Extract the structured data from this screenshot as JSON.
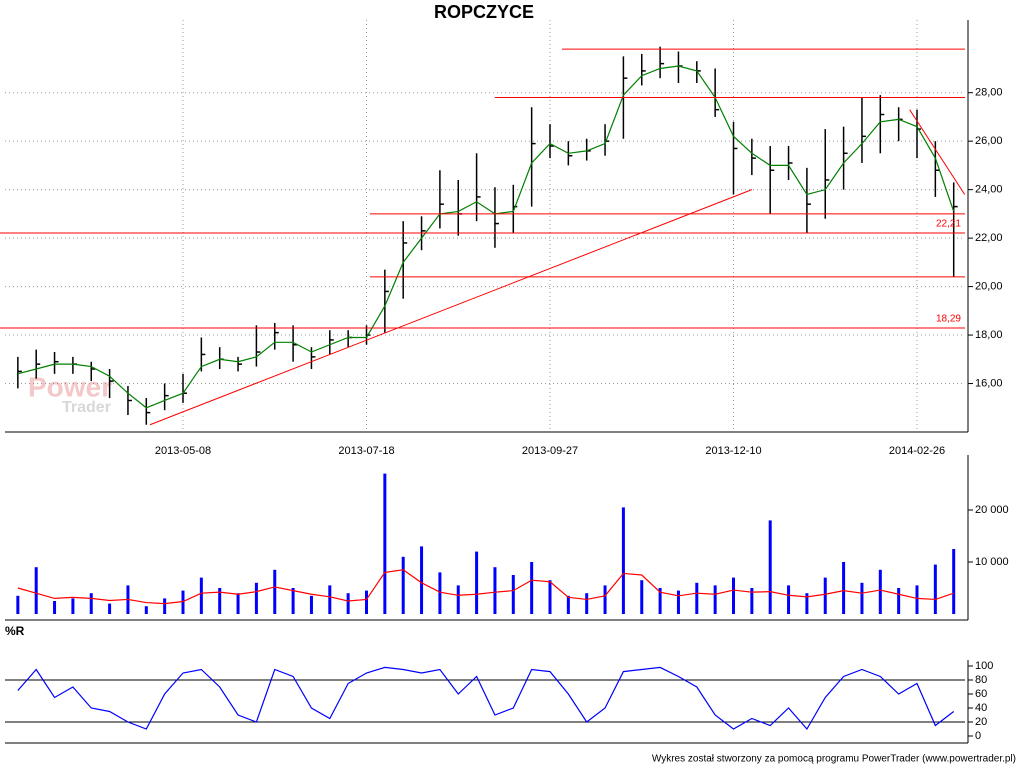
{
  "title": "ROPCZYCE",
  "footer": "Wykres został stworzony za pomocą programu PowerTrader (www.powertrader.pl)",
  "watermark": [
    "Power",
    "Trader"
  ],
  "chart_data": [
    {
      "type": "ohlc",
      "color": "#000000",
      "grid": true,
      "categories": [
        null,
        null,
        null,
        null,
        null,
        null,
        null,
        null,
        null,
        "2013-05-08",
        null,
        null,
        null,
        null,
        null,
        null,
        null,
        null,
        null,
        "2013-07-18",
        null,
        null,
        null,
        null,
        null,
        null,
        null,
        null,
        null,
        "2013-09-27",
        null,
        null,
        null,
        null,
        null,
        null,
        null,
        null,
        null,
        "2013-12-10",
        null,
        null,
        null,
        null,
        null,
        null,
        null,
        null,
        null,
        "2014-02-26",
        null,
        null
      ],
      "high": [
        17.1,
        17.4,
        17.3,
        17.1,
        16.9,
        16.6,
        15.9,
        15.4,
        16.0,
        16.4,
        17.9,
        17.5,
        17.1,
        18.4,
        18.5,
        18.4,
        17.5,
        18.2,
        18.2,
        18.4,
        20.7,
        22.7,
        22.9,
        24.8,
        24.4,
        25.5,
        24.1,
        24.2,
        27.4,
        26.7,
        26.0,
        26.1,
        26.7,
        29.5,
        29.6,
        29.9,
        29.7,
        29.3,
        29.0,
        26.8,
        26.1,
        25.8,
        25.8,
        24.9,
        26.5,
        26.6,
        27.8,
        27.9,
        27.4,
        27.3,
        26.0,
        24.3
      ],
      "low": [
        15.8,
        16.2,
        16.4,
        16.4,
        16.1,
        15.4,
        14.7,
        14.3,
        14.9,
        15.2,
        16.5,
        16.6,
        16.5,
        16.7,
        17.4,
        16.9,
        16.6,
        17.2,
        17.5,
        17.6,
        18.1,
        19.5,
        21.5,
        22.4,
        22.1,
        22.7,
        21.6,
        22.2,
        23.3,
        25.3,
        25.0,
        25.2,
        25.4,
        26.1,
        28.3,
        28.6,
        28.4,
        28.4,
        27.0,
        23.8,
        24.6,
        23.0,
        24.4,
        22.2,
        22.8,
        24.0,
        25.1,
        25.5,
        26.0,
        25.3,
        23.7,
        20.4
      ],
      "close": [
        16.5,
        16.8,
        16.9,
        16.8,
        16.6,
        16.1,
        15.3,
        14.8,
        15.5,
        15.6,
        17.2,
        17.0,
        16.8,
        17.3,
        18.1,
        17.6,
        17.1,
        17.8,
        17.9,
        18.0,
        19.8,
        21.8,
        22.3,
        23.4,
        23.0,
        23.7,
        22.6,
        23.3,
        25.9,
        25.8,
        25.4,
        25.6,
        26.0,
        28.6,
        28.9,
        29.2,
        29.1,
        28.9,
        27.3,
        25.7,
        25.3,
        24.8,
        25.1,
        23.4,
        24.4,
        25.5,
        26.2,
        27.1,
        26.9,
        26.5,
        24.8,
        23.3
      ],
      "ma": {
        "color": "#008000",
        "values": [
          16.4,
          16.6,
          16.8,
          16.8,
          16.7,
          16.3,
          15.6,
          15.0,
          15.3,
          15.6,
          16.7,
          17.0,
          16.9,
          17.1,
          17.7,
          17.7,
          17.3,
          17.6,
          17.9,
          17.9,
          19.2,
          21.0,
          22.0,
          23.0,
          23.1,
          23.5,
          23.0,
          23.1,
          25.1,
          25.9,
          25.5,
          25.6,
          25.9,
          27.9,
          28.7,
          29.0,
          29.1,
          28.9,
          27.8,
          26.2,
          25.5,
          25.0,
          25.0,
          23.8,
          24.0,
          25.1,
          25.9,
          26.8,
          26.9,
          26.6,
          25.3,
          23.1
        ]
      },
      "levels_color": "#ff0000",
      "levels": [
        {
          "value": 29.8,
          "x1": 29.65
        },
        {
          "value": 27.8,
          "x1": 25.99
        },
        {
          "value": 23.0,
          "x1": 19.19
        },
        {
          "value": 22.21,
          "label": "22,21",
          "x1": -1
        },
        {
          "value": 20.4,
          "x1": 19.19
        },
        {
          "value": 18.29,
          "label": "18,29",
          "x1": -1
        }
      ],
      "trendlines": [
        {
          "x": [
            7.2,
            40.0
          ],
          "y": [
            14.3,
            24.0
          ]
        },
        {
          "x": [
            48.6,
            51.6
          ],
          "y": [
            27.3,
            23.8
          ]
        }
      ],
      "ylim": [
        14,
        31
      ],
      "yticks": [
        {
          "value": 16,
          "label": "16,00"
        },
        {
          "value": 18,
          "label": "18,00"
        },
        {
          "value": 20,
          "label": "20,00"
        },
        {
          "value": 22,
          "label": "22,00"
        },
        {
          "value": 24,
          "label": "24,00"
        },
        {
          "value": 26,
          "label": "26,00"
        },
        {
          "value": 28,
          "label": "28,00"
        }
      ]
    },
    {
      "type": "bar",
      "color": "#0000ff",
      "values": [
        3500,
        9000,
        2500,
        3000,
        4000,
        2000,
        5500,
        1500,
        3000,
        4500,
        7000,
        5000,
        4000,
        6000,
        8500,
        5000,
        3500,
        5500,
        4000,
        4500,
        27000,
        11000,
        13000,
        8000,
        5500,
        12000,
        9000,
        7500,
        10000,
        6500,
        3500,
        4000,
        5500,
        20500,
        6500,
        5000,
        4500,
        6000,
        5500,
        7000,
        5000,
        18000,
        5500,
        4000,
        7000,
        10000,
        6000,
        8500,
        5000,
        5500,
        9500,
        12500
      ],
      "ma": {
        "color": "#ff0000",
        "values": [
          5000,
          4000,
          3000,
          3200,
          3000,
          2600,
          2800,
          2200,
          2000,
          2400,
          4000,
          4200,
          3800,
          4300,
          5200,
          4500,
          3800,
          3300,
          2500,
          2800,
          8000,
          8500,
          6000,
          4200,
          3600,
          3800,
          4200,
          4500,
          6500,
          6200,
          3200,
          2800,
          3500,
          7800,
          7500,
          4200,
          3500,
          4000,
          3800,
          4600,
          4200,
          4300,
          3600,
          3300,
          3800,
          4500,
          4000,
          4600,
          3800,
          3000,
          2800,
          4000
        ]
      },
      "ylim": [
        0,
        30000
      ],
      "yticks": [
        {
          "value": 10000,
          "label": "10 000"
        },
        {
          "value": 20000,
          "label": "20 000"
        }
      ]
    },
    {
      "type": "line",
      "title": "%R",
      "color": "#0000ff",
      "values": [
        65,
        95,
        55,
        70,
        40,
        35,
        20,
        10,
        60,
        90,
        95,
        70,
        30,
        20,
        95,
        85,
        40,
        25,
        75,
        90,
        98,
        95,
        90,
        95,
        60,
        85,
        30,
        40,
        95,
        92,
        60,
        20,
        40,
        92,
        95,
        98,
        85,
        70,
        30,
        10,
        25,
        15,
        40,
        10,
        55,
        85,
        95,
        85,
        60,
        75,
        15,
        35
      ],
      "levels": [
        20,
        80
      ],
      "ylim": [
        0,
        100
      ],
      "yticks": [
        0,
        20,
        40,
        60,
        80,
        100
      ]
    }
  ]
}
